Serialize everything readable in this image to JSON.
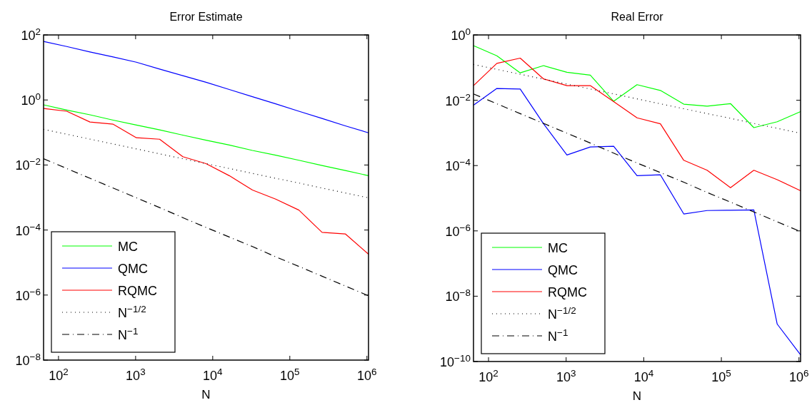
{
  "chart_data": [
    {
      "type": "line",
      "title": "Error Estimate",
      "xlabel": "N",
      "log": "xy",
      "grid": false,
      "legend": "bottom left",
      "xlim": [
        64,
        1048576
      ],
      "ylim": [
        1e-08,
        100
      ],
      "xticks": [
        {
          "value": 100,
          "label": "10$^{2}$"
        },
        {
          "value": 1000,
          "label": "10$^{3}$"
        },
        {
          "value": 10000,
          "label": "10$^{4}$"
        },
        {
          "value": 100000,
          "label": "10$^{5}$"
        },
        {
          "value": 1000000,
          "label": "10$^{6}$"
        }
      ],
      "yticks": [
        {
          "value": 1e-08,
          "label": "10$^{−8}$"
        },
        {
          "value": 1e-06,
          "label": "10$^{−6}$"
        },
        {
          "value": 0.0001,
          "label": "10$^{−4}$"
        },
        {
          "value": 0.01,
          "label": "10$^{−2}$"
        },
        {
          "value": 1,
          "label": "10$^{0}$"
        },
        {
          "value": 100,
          "label": "10$^{2}$"
        }
      ],
      "x": [
        64,
        128,
        256,
        512,
        1024,
        2048,
        4096,
        8192,
        16384,
        32768,
        65536,
        131072,
        262144,
        524288,
        1048576
      ],
      "series": [
        {
          "name": "MC",
          "color": "#00ff00",
          "line_style": "solid",
          "values": [
            0.71,
            0.49,
            0.35,
            0.24,
            0.17,
            0.12,
            0.083,
            0.058,
            0.041,
            0.028,
            0.02,
            0.014,
            0.0096,
            0.0068,
            0.0047
          ]
        },
        {
          "name": "QMC",
          "color": "#0000ff",
          "line_style": "solid",
          "values": [
            63,
            44,
            30,
            21,
            14.5,
            8.9,
            5.6,
            3.5,
            2.1,
            1.26,
            0.76,
            0.45,
            0.27,
            0.16,
            0.098
          ]
        },
        {
          "name": "RQMC",
          "color": "#ff0000",
          "line_style": "solid",
          "values": [
            0.55,
            0.45,
            0.21,
            0.18,
            0.069,
            0.062,
            0.018,
            0.011,
            0.0047,
            0.0017,
            0.00089,
            0.00041,
            8.5e-05,
            7.6e-05,
            1.8e-05
          ]
        },
        {
          "name": "N$^{−1/2}$",
          "color": "#000000",
          "line_style": "dotted",
          "values": [
            0.125,
            0.0884,
            0.0625,
            0.0442,
            0.03125,
            0.0221,
            0.0156,
            0.011,
            0.0078,
            0.0055,
            0.0039,
            0.0028,
            0.00195,
            0.00138,
            0.00098
          ]
        },
        {
          "name": "N$^{−1}$",
          "color": "#000000",
          "line_style": "dashdot",
          "values": [
            0.0156,
            0.0078,
            0.0039,
            0.00195,
            0.00098,
            0.00049,
            0.00024,
            0.00012,
            6.1e-05,
            3.1e-05,
            1.5e-05,
            7.6e-06,
            3.8e-06,
            1.9e-06,
            9.5e-07
          ]
        }
      ]
    },
    {
      "type": "line",
      "title": "Real Error",
      "xlabel": "N",
      "log": "xy",
      "grid": false,
      "legend": "bottom left",
      "xlim": [
        64,
        1048576
      ],
      "ylim": [
        1e-10,
        1
      ],
      "xticks": [
        {
          "value": 100,
          "label": "10$^{2}$"
        },
        {
          "value": 1000,
          "label": "10$^{3}$"
        },
        {
          "value": 10000,
          "label": "10$^{4}$"
        },
        {
          "value": 100000,
          "label": "10$^{5}$"
        },
        {
          "value": 1000000,
          "label": "10$^{6}$"
        }
      ],
      "yticks": [
        {
          "value": 1e-10,
          "label": "10$^{−10}$"
        },
        {
          "value": 1e-08,
          "label": "10$^{−8}$"
        },
        {
          "value": 1e-06,
          "label": "10$^{−6}$"
        },
        {
          "value": 0.0001,
          "label": "10$^{−4}$"
        },
        {
          "value": 0.01,
          "label": "10$^{−2}$"
        },
        {
          "value": 1,
          "label": "10$^{0}$"
        }
      ],
      "x": [
        64,
        128,
        256,
        512,
        1024,
        2048,
        4096,
        8192,
        16384,
        32768,
        65536,
        131072,
        262144,
        524288,
        1048576
      ],
      "series": [
        {
          "name": "MC",
          "color": "#00ff00",
          "line_style": "solid",
          "values": [
            0.47,
            0.23,
            0.069,
            0.115,
            0.072,
            0.059,
            0.0093,
            0.03,
            0.02,
            0.0076,
            0.0066,
            0.0079,
            0.00145,
            0.0022,
            0.0045
          ]
        },
        {
          "name": "QMC",
          "color": "#0000ff",
          "line_style": "solid",
          "values": [
            0.0071,
            0.023,
            0.022,
            0.0019,
            0.00021,
            0.00037,
            0.00039,
            4.9e-05,
            5.2e-05,
            3.3e-06,
            4.2e-06,
            4.3e-06,
            4.4e-06,
            1.4e-09,
            1.6e-10
          ]
        },
        {
          "name": "RQMC",
          "color": "#ff0000",
          "line_style": "solid",
          "values": [
            0.028,
            0.135,
            0.195,
            0.045,
            0.028,
            0.028,
            0.0091,
            0.0029,
            0.0019,
            0.000145,
            7.2e-05,
            2.1e-05,
            7.2e-05,
            3.7e-05,
            1.7e-05
          ]
        },
        {
          "name": "N$^{−1/2}$",
          "color": "#000000",
          "line_style": "dotted",
          "values": [
            0.125,
            0.0884,
            0.0625,
            0.0442,
            0.03125,
            0.0221,
            0.0156,
            0.011,
            0.0078,
            0.0055,
            0.0039,
            0.0028,
            0.00195,
            0.00138,
            0.00098
          ]
        },
        {
          "name": "N$^{−1}$",
          "color": "#000000",
          "line_style": "dashdot",
          "values": [
            0.0156,
            0.0078,
            0.0039,
            0.00195,
            0.00098,
            0.00049,
            0.00024,
            0.00012,
            6.1e-05,
            3.1e-05,
            1.5e-05,
            7.6e-06,
            3.8e-06,
            1.9e-06,
            9.5e-07
          ]
        }
      ]
    }
  ]
}
